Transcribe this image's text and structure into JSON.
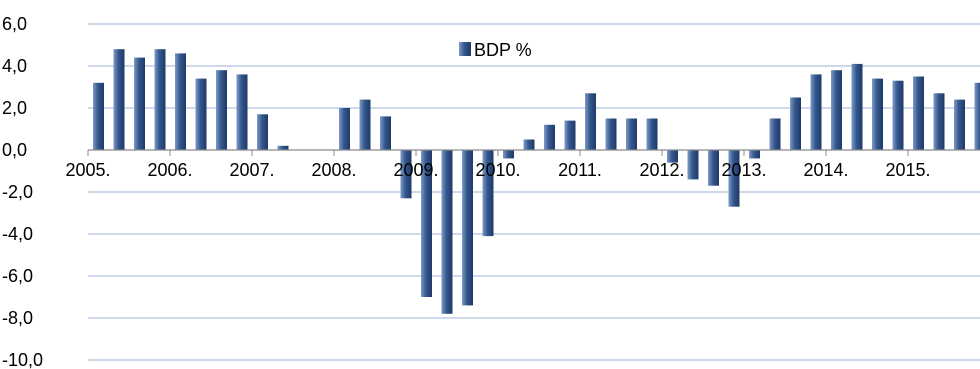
{
  "chart_data": {
    "type": "bar",
    "series": [
      {
        "name": "BDP %",
        "color": "#4a6fa5",
        "values": [
          3.2,
          4.8,
          4.4,
          4.8,
          4.6,
          3.4,
          3.8,
          3.6,
          1.7,
          0.2,
          0.0,
          0.0,
          2.0,
          2.4,
          1.6,
          -2.3,
          -7.0,
          -7.8,
          -7.4,
          -4.1,
          -0.4,
          0.5,
          1.2,
          1.4,
          2.7,
          1.5,
          1.5,
          1.5,
          -0.6,
          -1.4,
          -1.7,
          -2.7,
          -0.4,
          1.5,
          2.5,
          3.6,
          3.8,
          4.1,
          3.4,
          3.3,
          3.5,
          2.7,
          2.4,
          3.2
        ]
      }
    ],
    "year_labels": [
      "2005.",
      "2006.",
      "2007.",
      "2008.",
      "2009.",
      "2010.",
      "2011.",
      "2012.",
      "2013.",
      "2014.",
      "2015."
    ],
    "y_ticks": [
      "6,0",
      "4,0",
      "2,0",
      "0,0",
      "-2,0",
      "-4,0",
      "-6,0",
      "-8,0",
      "-10,0"
    ],
    "ylim": [
      -10,
      6
    ],
    "grid": true,
    "legend_position": "top-center"
  }
}
